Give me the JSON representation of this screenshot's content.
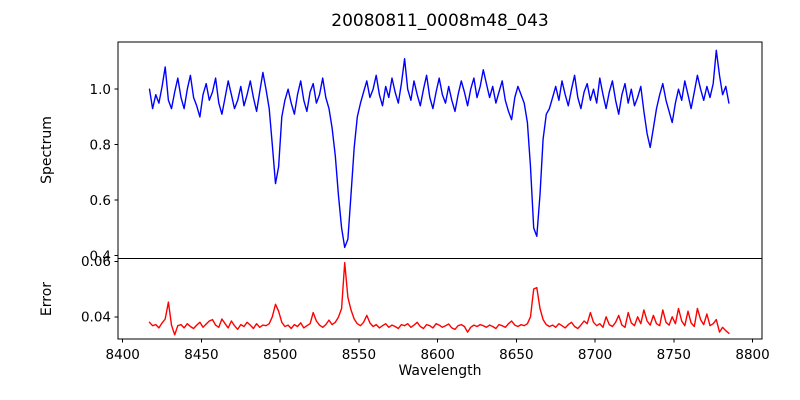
{
  "figure_title": "20080811_0008m48_043",
  "colors": {
    "spectrum_line": "#0000ff",
    "error_line": "#ff0000",
    "axis": "#000000",
    "background": "#ffffff"
  },
  "chart_data": [
    {
      "type": "line",
      "panel": "spectrum",
      "title": "20080811_0008m48_043",
      "ylabel": "Spectrum",
      "color": "#0000ff",
      "grid": false,
      "legend": false,
      "xlim": [
        8397,
        8806
      ],
      "ylim": [
        0.39,
        1.17
      ],
      "yticks": [
        "0.4",
        "0.6",
        "0.8",
        "1.0"
      ],
      "wavelength_start": 8417,
      "wavelength_step": 2,
      "n_points": 185,
      "absorption_lines": [
        {
          "center": 8497,
          "min_flux": 0.66
        },
        {
          "center": 8541,
          "min_flux": 0.43
        },
        {
          "center": 8662,
          "min_flux": 0.47
        },
        {
          "center": 8735,
          "min_flux": 0.79
        }
      ],
      "values": [
        1.0,
        0.93,
        0.98,
        0.95,
        1.01,
        1.08,
        0.96,
        0.93,
        0.99,
        1.04,
        0.97,
        0.93,
        1.0,
        1.05,
        0.97,
        0.94,
        0.9,
        0.98,
        1.02,
        0.96,
        0.99,
        1.04,
        0.95,
        0.91,
        0.97,
        1.03,
        0.98,
        0.93,
        0.96,
        1.01,
        0.94,
        0.98,
        1.03,
        0.97,
        0.92,
        0.99,
        1.06,
        1.0,
        0.93,
        0.8,
        0.66,
        0.72,
        0.9,
        0.96,
        1.0,
        0.95,
        0.91,
        0.98,
        1.03,
        0.96,
        0.92,
        0.99,
        1.02,
        0.95,
        0.98,
        1.04,
        0.97,
        0.93,
        0.86,
        0.76,
        0.62,
        0.5,
        0.43,
        0.46,
        0.62,
        0.79,
        0.9,
        0.95,
        0.99,
        1.03,
        0.97,
        1.0,
        1.05,
        0.98,
        0.94,
        1.01,
        0.97,
        1.04,
        0.99,
        0.95,
        1.02,
        1.11,
        1.0,
        0.96,
        1.03,
        0.98,
        0.94,
        1.0,
        1.05,
        0.97,
        0.93,
        0.99,
        1.04,
        0.98,
        0.95,
        1.01,
        0.96,
        0.92,
        0.98,
        1.03,
        0.99,
        0.94,
        1.0,
        1.04,
        0.97,
        1.01,
        1.07,
        1.02,
        0.97,
        1.01,
        0.95,
        0.99,
        1.03,
        0.96,
        0.92,
        0.89,
        0.97,
        1.01,
        0.98,
        0.95,
        0.88,
        0.72,
        0.5,
        0.47,
        0.62,
        0.82,
        0.91,
        0.93,
        0.97,
        1.01,
        0.96,
        1.03,
        0.98,
        0.94,
        1.0,
        1.05,
        0.97,
        0.93,
        0.99,
        1.02,
        0.96,
        1.0,
        0.95,
        1.04,
        0.98,
        0.93,
        0.99,
        1.03,
        0.96,
        0.91,
        0.98,
        1.02,
        0.95,
        1.0,
        0.94,
        0.97,
        1.01,
        0.92,
        0.84,
        0.79,
        0.86,
        0.93,
        0.98,
        1.02,
        0.96,
        0.92,
        0.88,
        0.95,
        1.0,
        0.96,
        1.03,
        0.98,
        0.93,
        0.99,
        1.05,
        1.0,
        0.96,
        1.01,
        0.97,
        1.02,
        1.14,
        1.05,
        0.98,
        1.01,
        0.95
      ]
    },
    {
      "type": "line",
      "panel": "error",
      "ylabel": "Error",
      "xlabel": "Wavelength",
      "color": "#ff0000",
      "grid": false,
      "legend": false,
      "xlim": [
        8397,
        8806
      ],
      "ylim": [
        0.032,
        0.061
      ],
      "yticks": [
        "0.04",
        "0.06"
      ],
      "xticks": [
        "8400",
        "8450",
        "8500",
        "8550",
        "8600",
        "8650",
        "8700",
        "8750",
        "8800"
      ],
      "wavelength_start": 8417,
      "wavelength_step": 2,
      "n_points": 185,
      "values": [
        0.038,
        0.0368,
        0.0372,
        0.036,
        0.0378,
        0.0392,
        0.0453,
        0.037,
        0.0335,
        0.0368,
        0.0372,
        0.036,
        0.0375,
        0.0365,
        0.0358,
        0.037,
        0.038,
        0.0362,
        0.0374,
        0.0385,
        0.039,
        0.037,
        0.0362,
        0.0392,
        0.0375,
        0.036,
        0.0385,
        0.0368,
        0.0355,
        0.0372,
        0.0365,
        0.038,
        0.037,
        0.0358,
        0.0375,
        0.0362,
        0.037,
        0.0368,
        0.0375,
        0.04,
        0.0445,
        0.042,
        0.038,
        0.0365,
        0.037,
        0.0358,
        0.0372,
        0.0365,
        0.0378,
        0.036,
        0.0368,
        0.0375,
        0.0415,
        0.0385,
        0.037,
        0.0362,
        0.0372,
        0.0388,
        0.0372,
        0.038,
        0.0398,
        0.043,
        0.0595,
        0.047,
        0.0425,
        0.0392,
        0.0375,
        0.0368,
        0.038,
        0.0405,
        0.0378,
        0.0365,
        0.0372,
        0.036,
        0.0368,
        0.0375,
        0.0362,
        0.037,
        0.0365,
        0.0358,
        0.0372,
        0.0368,
        0.0375,
        0.0362,
        0.037,
        0.038,
        0.0365,
        0.0358,
        0.0372,
        0.0368,
        0.036,
        0.0375,
        0.037,
        0.0362,
        0.0368,
        0.0374,
        0.036,
        0.0355,
        0.0368,
        0.0372,
        0.0365,
        0.0345,
        0.0362,
        0.037,
        0.0365,
        0.0372,
        0.0368,
        0.0362,
        0.037,
        0.0365,
        0.0358,
        0.0372,
        0.0368,
        0.0362,
        0.0375,
        0.0385,
        0.037,
        0.0365,
        0.0372,
        0.0368,
        0.0375,
        0.04,
        0.05,
        0.0505,
        0.043,
        0.039,
        0.0372,
        0.0365,
        0.037,
        0.0362,
        0.0375,
        0.0368,
        0.036,
        0.0372,
        0.038,
        0.0365,
        0.0358,
        0.037,
        0.0385,
        0.0375,
        0.0415,
        0.038,
        0.0368,
        0.0375,
        0.0362,
        0.04,
        0.0372,
        0.0365,
        0.038,
        0.0405,
        0.037,
        0.0362,
        0.0415,
        0.0378,
        0.0368,
        0.04,
        0.0375,
        0.0425,
        0.0385,
        0.037,
        0.0405,
        0.0375,
        0.0368,
        0.0425,
        0.038,
        0.037,
        0.04,
        0.0375,
        0.043,
        0.0385,
        0.0368,
        0.042,
        0.0378,
        0.0365,
        0.043,
        0.039,
        0.0372,
        0.041,
        0.0368,
        0.0375,
        0.039,
        0.0345,
        0.0362,
        0.035,
        0.034
      ]
    }
  ]
}
